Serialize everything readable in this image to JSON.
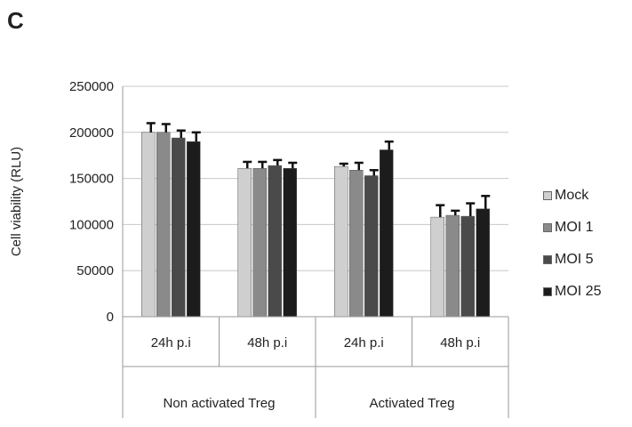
{
  "panel_label": "C",
  "chart_data": {
    "type": "bar",
    "ylabel": "Cell viability (RLU)",
    "ylim": [
      0,
      250000
    ],
    "yticks": [
      0,
      50000,
      100000,
      150000,
      200000,
      250000
    ],
    "grid": true,
    "legend_position": "right",
    "categories": [
      "24h p.i",
      "48h p.i",
      "24h p.i",
      "48h p.i"
    ],
    "groups": [
      {
        "label": "Non activated Treg",
        "categories": [
          "24h p.i",
          "48h p.i"
        ]
      },
      {
        "label": "Activated Treg",
        "categories": [
          "24h p.i",
          "48h p.i"
        ]
      }
    ],
    "series": [
      {
        "name": "Mock",
        "color": "#cfcfcf",
        "values": [
          200000,
          161000,
          163000,
          108000
        ],
        "errors": [
          10000,
          7000,
          3000,
          13000
        ]
      },
      {
        "name": "MOI 1",
        "color": "#8a8a8a",
        "values": [
          200000,
          161000,
          159000,
          110000
        ],
        "errors": [
          9000,
          7000,
          8000,
          5000
        ]
      },
      {
        "name": "MOI 5",
        "color": "#4a4a4a",
        "values": [
          194000,
          164000,
          153000,
          109000
        ],
        "errors": [
          8000,
          6000,
          6000,
          14000
        ]
      },
      {
        "name": "MOI 25",
        "color": "#1c1c1c",
        "values": [
          190000,
          161000,
          181000,
          117000
        ],
        "errors": [
          10000,
          6000,
          9000,
          14000
        ]
      }
    ]
  }
}
